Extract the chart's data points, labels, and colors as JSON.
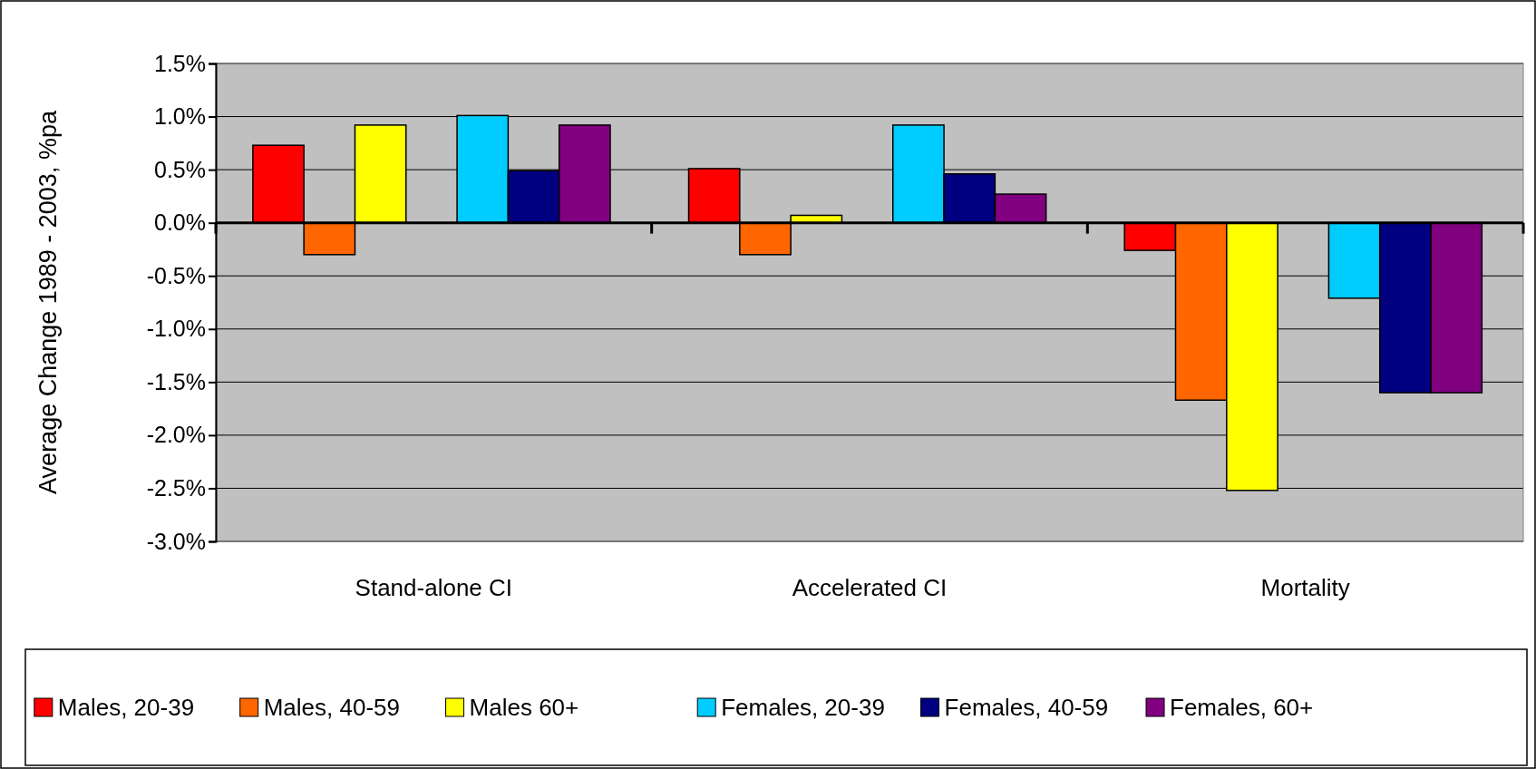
{
  "chart_data": {
    "type": "bar",
    "ylabel": "Average Change 1989 - 2003, %pa",
    "categories": [
      "Stand-alone CI",
      "Accelerated CI",
      "Mortality"
    ],
    "series": [
      {
        "name": "Males, 20-39",
        "color": "#ff0000",
        "values": [
          0.73,
          0.51,
          -0.26
        ]
      },
      {
        "name": "Males, 40-59",
        "color": "#ff6600",
        "values": [
          -0.3,
          -0.3,
          -1.67
        ]
      },
      {
        "name": "Males 60+",
        "color": "#ffff00",
        "values": [
          0.92,
          0.07,
          -2.52
        ]
      },
      {
        "values": [
          null,
          null,
          null
        ]
      },
      {
        "name": "Females, 20-39",
        "color": "#00ccff",
        "values": [
          1.01,
          0.92,
          -0.71
        ]
      },
      {
        "name": "Females, 40-59",
        "color": "#000080",
        "values": [
          0.49,
          0.46,
          -1.6
        ]
      },
      {
        "name": "Females, 60+",
        "color": "#800080",
        "values": [
          0.92,
          0.27,
          -1.6
        ]
      }
    ],
    "ylim": [
      -3,
      1.5
    ],
    "yticks": [
      {
        "value": -3,
        "label": "-3.0%"
      },
      {
        "value": -2.5,
        "label": "-2.5%"
      },
      {
        "value": -2,
        "label": "-2.0%"
      },
      {
        "value": -1.5,
        "label": "-1.5%"
      },
      {
        "value": -1,
        "label": "-1.0%"
      },
      {
        "value": -0.5,
        "label": "-0.5%"
      },
      {
        "value": 0,
        "label": "0.0%"
      },
      {
        "value": 0.5,
        "label": "0.5%"
      },
      {
        "value": 1,
        "label": "1.0%"
      },
      {
        "value": 1.5,
        "label": "1.5%"
      }
    ],
    "grid": "y",
    "legend": "bottom"
  }
}
